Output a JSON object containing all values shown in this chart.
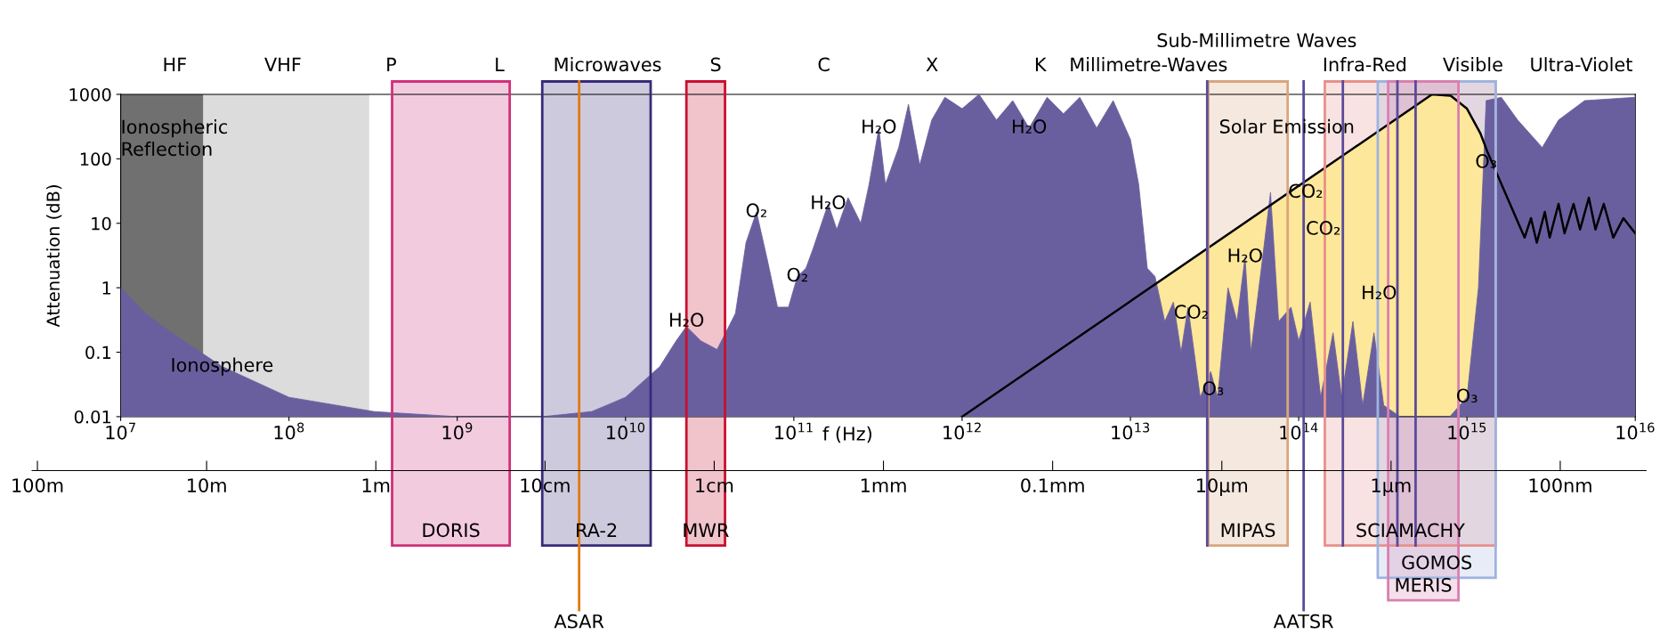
{
  "chart_data": [
    {
      "type": "area",
      "xlabel": "f (Hz)",
      "ylabel": "Attenuation (dB)",
      "log": "xy",
      "grid": false,
      "xlim": [
        10000000.0,
        1e+16
      ],
      "ylim": [
        0.01,
        1000
      ],
      "xticks": [
        {
          "value": 10000000.0,
          "label": "10$^{7}$"
        },
        {
          "value": 100000000.0,
          "label": "10$^{8}$"
        },
        {
          "value": 1000000000.0,
          "label": "10$^{9}$"
        },
        {
          "value": 10000000000.0,
          "label": "10$^{10}$"
        },
        {
          "value": 100000000000.0,
          "label": "10$^{11}$"
        },
        {
          "value": 1000000000000.0,
          "label": "10$^{12}$"
        },
        {
          "value": 10000000000000.0,
          "label": "10$^{13}$"
        },
        {
          "value": 100000000000000.0,
          "label": "10$^{14}$"
        },
        {
          "value": 1000000000000000.0,
          "label": "10$^{15}$"
        },
        {
          "value": 1e+16,
          "label": "10$^{16}$"
        }
      ],
      "yticks": [
        0.01,
        0.1,
        1,
        10,
        100,
        1000
      ],
      "series": [
        {
          "color": "#fde79a",
          "x": [
            1000000000000.0,
            620000000000000.0,
            800000000000000.0,
            1000000000000000.0,
            1200000000000000.0,
            1320000000000000.0,
            2200000000000000.0,
            2400000000000000.0,
            2600000000000000.0,
            2900000000000000.0,
            3100000000000000.0,
            3500000000000000.0,
            3800000000000000.0,
            4300000000000000.0,
            4700000000000000.0,
            5300000000000000.0,
            5800000000000000.0,
            6500000000000000.0,
            7400000000000000.0,
            8500000000000000.0,
            1e+16
          ],
          "values": [
            0.01,
            1000,
            950,
            600,
            250,
            130,
            6,
            12,
            5,
            15,
            6,
            20,
            7,
            20,
            8,
            25,
            8,
            20,
            6,
            12,
            7
          ]
        },
        {
          "color": "#6a5f9e",
          "x": [
            10000000.0,
            14000000.0,
            20000000.0,
            40000000.0,
            100000000.0,
            320000000.0,
            1000000000.0,
            3200000000.0,
            6300000000.0,
            10000000000.0,
            16000000000.0,
            20000000000.0,
            23000000000.0,
            28000000000.0,
            35000000000.0,
            45000000000.0,
            52000000000.0,
            60000000000.0,
            69000000000.0,
            80000000000.0,
            93000000000.0,
            105000000000.0,
            118000000000.0,
            130000000000.0,
            160000000000.0,
            180000000000.0,
            210000000000.0,
            250000000000.0,
            280000000000.0,
            320000000000.0,
            350000000000.0,
            420000000000.0,
            480000000000.0,
            560000000000.0,
            660000000000.0,
            790000000000.0,
            1000000000000.0,
            1260000000000.0,
            1600000000000.0,
            2000000000000.0,
            2500000000000.0,
            3200000000000.0,
            4000000000000.0,
            5000000000000.0,
            6300000000000.0,
            7900000000000.0,
            10000000000000.0,
            11200000000000.0,
            12600000000000.0,
            14000000000000.0,
            16000000000000.0,
            18000000000000.0,
            20000000000000.0,
            22000000000000.0,
            26000000000000.0,
            30000000000000.0,
            33000000000000.0,
            38000000000000.0,
            43000000000000.0,
            48000000000000.0,
            52000000000000.0,
            60000000000000.0,
            68000000000000.0,
            76000000000000.0,
            90000000000000.0,
            100000000000000.0,
            117000000000000.0,
            135000000000000.0,
            160000000000000.0,
            180000000000000.0,
            210000000000000.0,
            240000000000000.0,
            280000000000000.0,
            320000000000000.0,
            400000000000000.0,
            790000000000000.0,
            1000000000000000.0,
            1170000000000000.0,
            1300000000000000.0,
            1600000000000000.0,
            2000000000000000.0,
            2800000000000000.0,
            3500000000000000.0,
            5000000000000000.0,
            1e+16
          ],
          "values": [
            1,
            0.4,
            0.2,
            0.06,
            0.02,
            0.012,
            0.01,
            0.01,
            0.012,
            0.02,
            0.06,
            0.15,
            0.25,
            0.15,
            0.11,
            0.4,
            5,
            15,
            3,
            0.5,
            0.5,
            1.5,
            2,
            4,
            20,
            8,
            25,
            10,
            40,
            300,
            40,
            150,
            700,
            80,
            400,
            900,
            600,
            1000,
            400,
            800,
            300,
            900,
            500,
            900,
            300,
            800,
            200,
            40,
            2,
            1.5,
            0.3,
            0.6,
            0.1,
            0.5,
            0.02,
            0.05,
            0.02,
            1,
            0.3,
            3,
            0.1,
            2,
            30,
            0.3,
            0.5,
            0.15,
            0.6,
            0.02,
            0.2,
            0.02,
            0.3,
            0.015,
            0.2,
            0.015,
            0.01,
            0.01,
            0.02,
            1,
            800,
            900,
            400,
            150,
            400,
            800,
            900
          ]
        }
      ],
      "bands": [
        {
          "axis": "x",
          "from": 10000000.0,
          "to": 31000000.0,
          "label": "Ionospheric\nReflection",
          "color": "#707070"
        },
        {
          "axis": "x",
          "from": 31000000.0,
          "to": 300000000.0,
          "color": "#dcdcdc"
        },
        {
          "axis": "x",
          "from": 410000000.0,
          "to": 2050000000.0,
          "label": "DORIS",
          "color": "#d0307a"
        },
        {
          "axis": "x",
          "from": 3200000000.0,
          "to": 14100000000.0,
          "label": "RA-2",
          "color": "#3a2a7a"
        },
        {
          "axis": "x",
          "from": 23000000000.0,
          "to": 39000000000.0,
          "label": "MWR",
          "color": "#c8102e"
        },
        {
          "axis": "x",
          "from": 29000000000000.0,
          "to": 86000000000000.0,
          "label": "MIPAS",
          "color": "#d9a57e"
        },
        {
          "axis": "x",
          "from": 143000000000000.0,
          "to": 1480000000000000.0,
          "label": "SCIAMACHY",
          "color": "#e8908a"
        },
        {
          "axis": "x",
          "from": 295000000000000.0,
          "to": 1480000000000000.0,
          "label": "GOMOS",
          "color": "#9fb3e0"
        },
        {
          "axis": "x",
          "from": 340000000000000.0,
          "to": 890000000000000.0,
          "label": "MERIS",
          "color": "#d880b0"
        }
      ],
      "ref_lines": [
        {
          "axis": "x",
          "value": 5300000000.0,
          "label": "ASAR",
          "color": "#e07a10"
        },
        {
          "axis": "x",
          "value": 28600000000000.0,
          "color": "#5a4a9a"
        },
        {
          "axis": "x",
          "value": 107000000000000.0,
          "label": "AATSR",
          "color": "#5a4a9a"
        },
        {
          "axis": "x",
          "value": 183000000000000.0,
          "color": "#5a4a9a"
        },
        {
          "axis": "x",
          "value": 386000000000000.0,
          "color": "#5a4a9a"
        },
        {
          "axis": "x",
          "value": 495000000000000.0,
          "color": "#5a4a9a"
        }
      ],
      "annotations": [
        "HF",
        "VHF",
        "P",
        "L",
        "Microwaves",
        "S",
        "C",
        "X",
        "K",
        "Millimetre-Waves",
        "Sub-Millimetre Waves",
        "Infra-Red",
        "Visible",
        "Ultra-Violet",
        {
          "text": "Ionosphere",
          "x": 40000000.0,
          "y": 0.06
        },
        {
          "text": "H₂O",
          "x": 23000000000.0,
          "y": 0.3
        },
        {
          "text": "O₂",
          "x": 60000000000.0,
          "y": 15
        },
        {
          "text": "O₂",
          "x": 105000000000.0,
          "y": 1.5
        },
        {
          "text": "H₂O",
          "x": 160000000000.0,
          "y": 20
        },
        {
          "text": "H₂O",
          "x": 320000000000.0,
          "y": 300
        },
        {
          "text": "H₂O",
          "x": 2500000000000.0,
          "y": 300
        },
        {
          "text": "Solar Emission",
          "x": 85000000000000.0,
          "y": 300
        },
        {
          "text": "CO₂",
          "x": 23000000000000.0,
          "y": 0.4
        },
        {
          "text": "O₃",
          "x": 31000000000000.0,
          "y": 0.026
        },
        {
          "text": "H₂O",
          "x": 48000000000000.0,
          "y": 3
        },
        {
          "text": "CO₂",
          "x": 110000000000000.0,
          "y": 30
        },
        {
          "text": "CO₂",
          "x": 140000000000000.0,
          "y": 8
        },
        {
          "text": "H₂O",
          "x": 300000000000000.0,
          "y": 0.8
        },
        {
          "text": "O₃",
          "x": 1000000000000000.0,
          "y": 0.02
        },
        {
          "text": "O₃",
          "x": 1300000000000000.0,
          "y": 87
        }
      ]
    },
    {
      "type": "other",
      "categories": [
        "100m",
        "10m",
        "1m",
        "10cm",
        "1cm",
        "1mm",
        "0.1mm",
        "10µm",
        "1µm",
        "100nm"
      ]
    }
  ]
}
